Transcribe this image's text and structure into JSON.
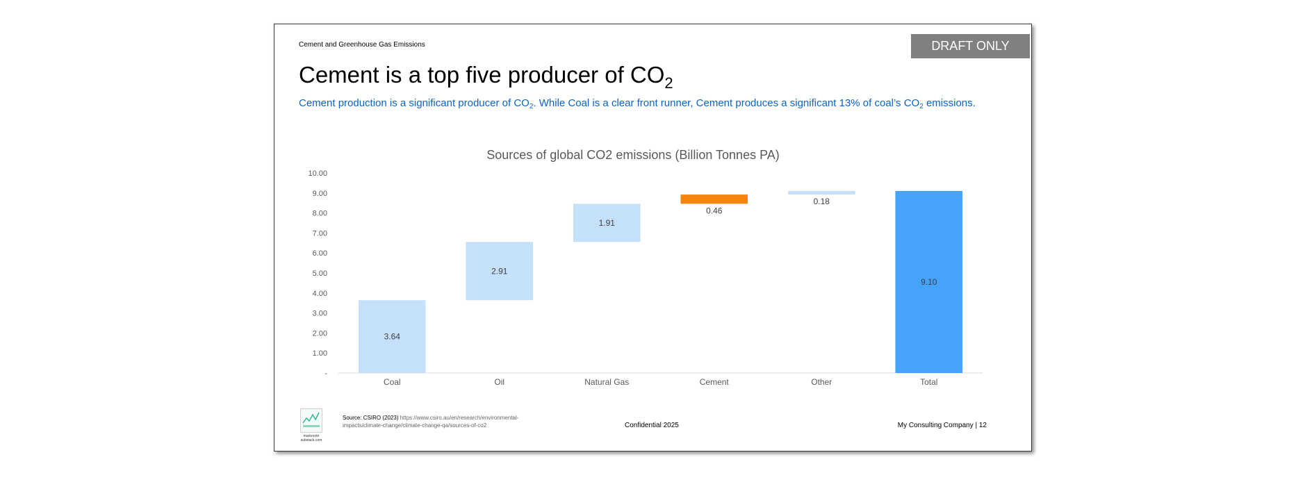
{
  "slide": {
    "section_label": "Cement and Greenhouse Gas Emissions",
    "draft_badge": "DRAFT ONLY",
    "title_main": "Cement is a top five producer of CO",
    "title_sub": "2",
    "subtitle_1": "Cement production is a significant producer of CO",
    "subtitle_sub1": "2",
    "subtitle_2": ". While Coal is a clear front runner, Cement produces a significant 13% of coal’s CO",
    "subtitle_sub2": "2",
    "subtitle_3": " emissions."
  },
  "chart_data": {
    "type": "bar",
    "subtype": "waterfall",
    "title": "Sources of global CO2 emissions (Billion Tonnes PA)",
    "categories": [
      "Coal",
      "Oil",
      "Natural Gas",
      "Cement",
      "Other",
      "Total"
    ],
    "values": [
      3.64,
      2.91,
      1.91,
      0.46,
      0.18,
      9.1
    ],
    "value_labels": [
      "3.64",
      "2.91",
      "1.91",
      "0.46",
      "0.18",
      "9.10"
    ],
    "ylim": [
      0,
      10
    ],
    "yticks": [
      "-",
      "1.00",
      "2.00",
      "3.00",
      "4.00",
      "5.00",
      "6.00",
      "7.00",
      "8.00",
      "9.00",
      "10.00"
    ],
    "grid": false,
    "colors": {
      "increase": "#c5e0fb",
      "highlight": "#f5850f",
      "total": "#45a3fb"
    },
    "highlight_category": "Cement"
  },
  "footer": {
    "logo_caption_1": "markrooté",
    "logo_caption_2": "substack.com",
    "source_label": "Source: CSIRO (2023) ",
    "source_url": "https://www.csiro.au/en/research/environmental-impacts/climate-change/climate-change-qa/sources-of-co2",
    "confidential": "Confidential 2025",
    "company": "My Consulting Company  | 12"
  }
}
